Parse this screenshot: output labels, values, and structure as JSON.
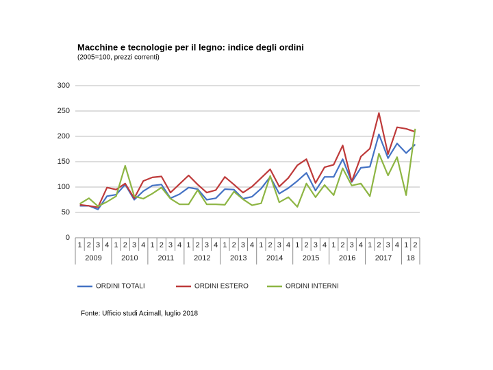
{
  "chart_data": {
    "type": "line",
    "title": "Macchine e tecnologie per il legno: indice degli ordini",
    "subtitle": "(2005=100, prezzi correnti)",
    "source": "Fonte: Ufficio studi Acimall, luglio 2018",
    "categories": [
      "1",
      "2",
      "3",
      "4",
      "1",
      "2",
      "3",
      "4",
      "1",
      "2",
      "3",
      "4",
      "1",
      "2",
      "3",
      "4",
      "1",
      "2",
      "3",
      "4",
      "1",
      "2",
      "3",
      "4",
      "1",
      "2",
      "3",
      "4",
      "1",
      "2",
      "3",
      "4",
      "1",
      "2",
      "3",
      "4",
      "1",
      "2"
    ],
    "groups": [
      {
        "label": "2009",
        "span": 4
      },
      {
        "label": "2010",
        "span": 4
      },
      {
        "label": "2011",
        "span": 4
      },
      {
        "label": "2012",
        "span": 4
      },
      {
        "label": "2013",
        "span": 4
      },
      {
        "label": "2014",
        "span": 4
      },
      {
        "label": "2015",
        "span": 4
      },
      {
        "label": "2016",
        "span": 4
      },
      {
        "label": "2017",
        "span": 4
      },
      {
        "label": "18",
        "span": 2
      }
    ],
    "ylim": [
      0,
      300
    ],
    "yticks": [
      0,
      50,
      100,
      150,
      200,
      250,
      300
    ],
    "grid": true,
    "legend": "bottom",
    "series": [
      {
        "name": "ORDINI TOTALI",
        "color": "#4472c4",
        "values": [
          63,
          63,
          56,
          82,
          85,
          105,
          75,
          92,
          103,
          105,
          78,
          86,
          99,
          96,
          75,
          78,
          96,
          95,
          77,
          81,
          97,
          120,
          87,
          98,
          112,
          128,
          93,
          120,
          120,
          155,
          110,
          138,
          140,
          204,
          157,
          186,
          167,
          184
        ]
      },
      {
        "name": "ORDINI ESTERO",
        "color": "#be3a3a",
        "values": [
          65,
          63,
          60,
          99,
          95,
          107,
          78,
          112,
          119,
          121,
          89,
          106,
          123,
          105,
          89,
          94,
          120,
          105,
          89,
          101,
          118,
          135,
          101,
          118,
          143,
          155,
          108,
          139,
          144,
          182,
          111,
          160,
          176,
          246,
          165,
          218,
          215,
          209
        ]
      },
      {
        "name": "ORDINI INTERNI",
        "color": "#8db543",
        "values": [
          67,
          78,
          62,
          71,
          82,
          142,
          82,
          77,
          87,
          99,
          77,
          66,
          66,
          94,
          66,
          66,
          65,
          91,
          76,
          64,
          68,
          122,
          70,
          80,
          61,
          107,
          80,
          104,
          84,
          137,
          103,
          107,
          82,
          166,
          123,
          159,
          84,
          215
        ]
      }
    ]
  }
}
